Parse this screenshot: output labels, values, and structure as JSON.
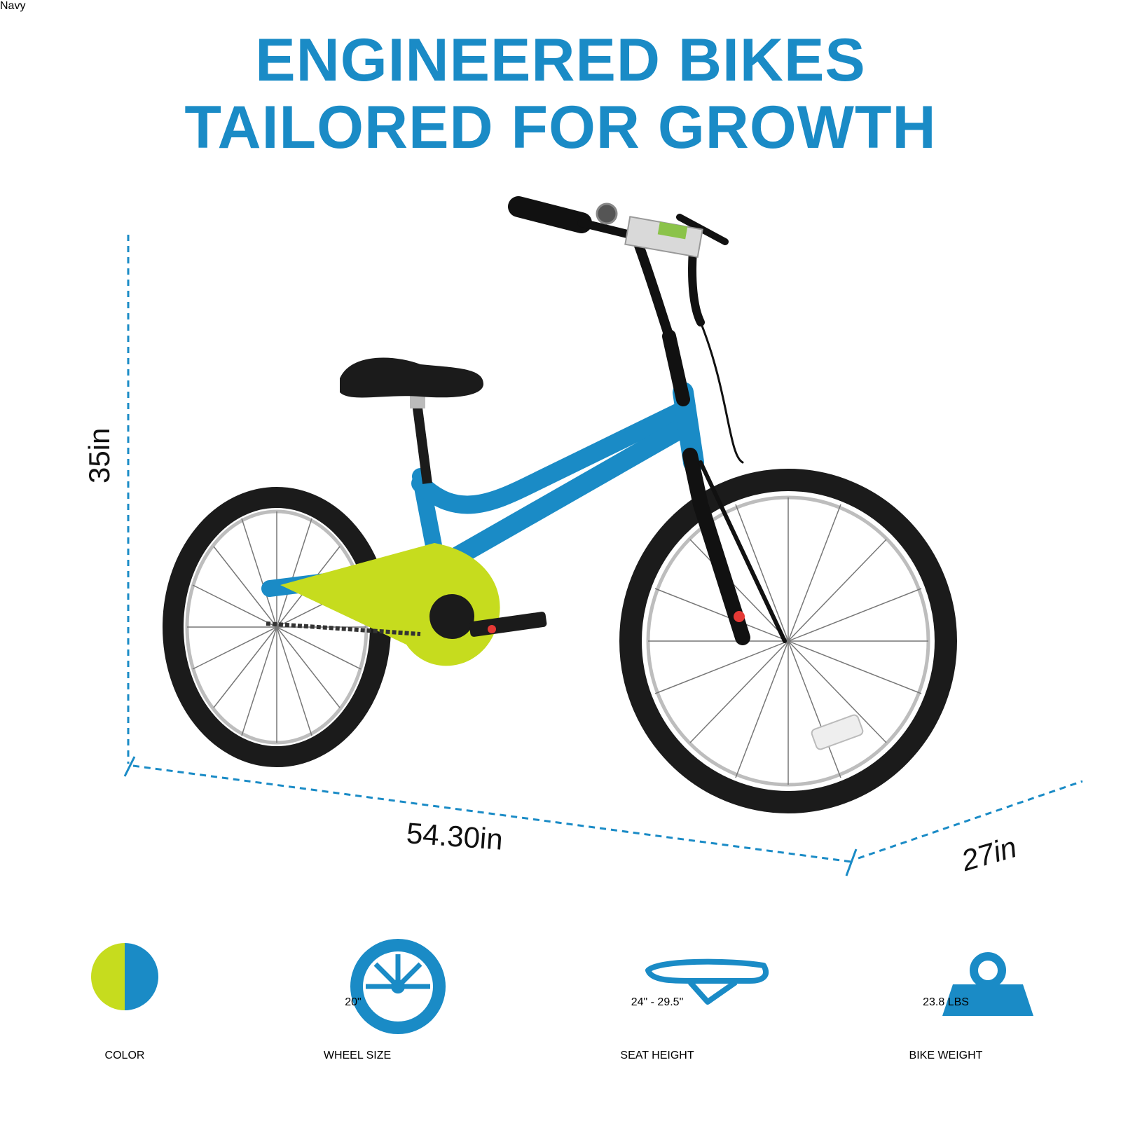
{
  "headline": {
    "line1": "ENGINEERED BIKES",
    "line2": "TAILORED FOR GROWTH"
  },
  "dimensions": {
    "height": "35in",
    "length": "54.30in",
    "depth": "27in"
  },
  "colors": {
    "brand_blue": "#1a8bc6",
    "lime": "#c6dc1e",
    "tire_black": "#1b1b1b"
  },
  "specs": {
    "color": {
      "value": "Navy",
      "label": "COLOR",
      "icon": "color-swatch-icon"
    },
    "wheel": {
      "value": "20\"",
      "label": "WHEEL SIZE",
      "icon": "wheel-icon"
    },
    "seat": {
      "value": "24\" - 29.5\"",
      "label": "SEAT HEIGHT",
      "icon": "seat-icon"
    },
    "weight": {
      "value": "23.8 LBS",
      "label": "BIKE WEIGHT",
      "icon": "weight-icon"
    }
  }
}
